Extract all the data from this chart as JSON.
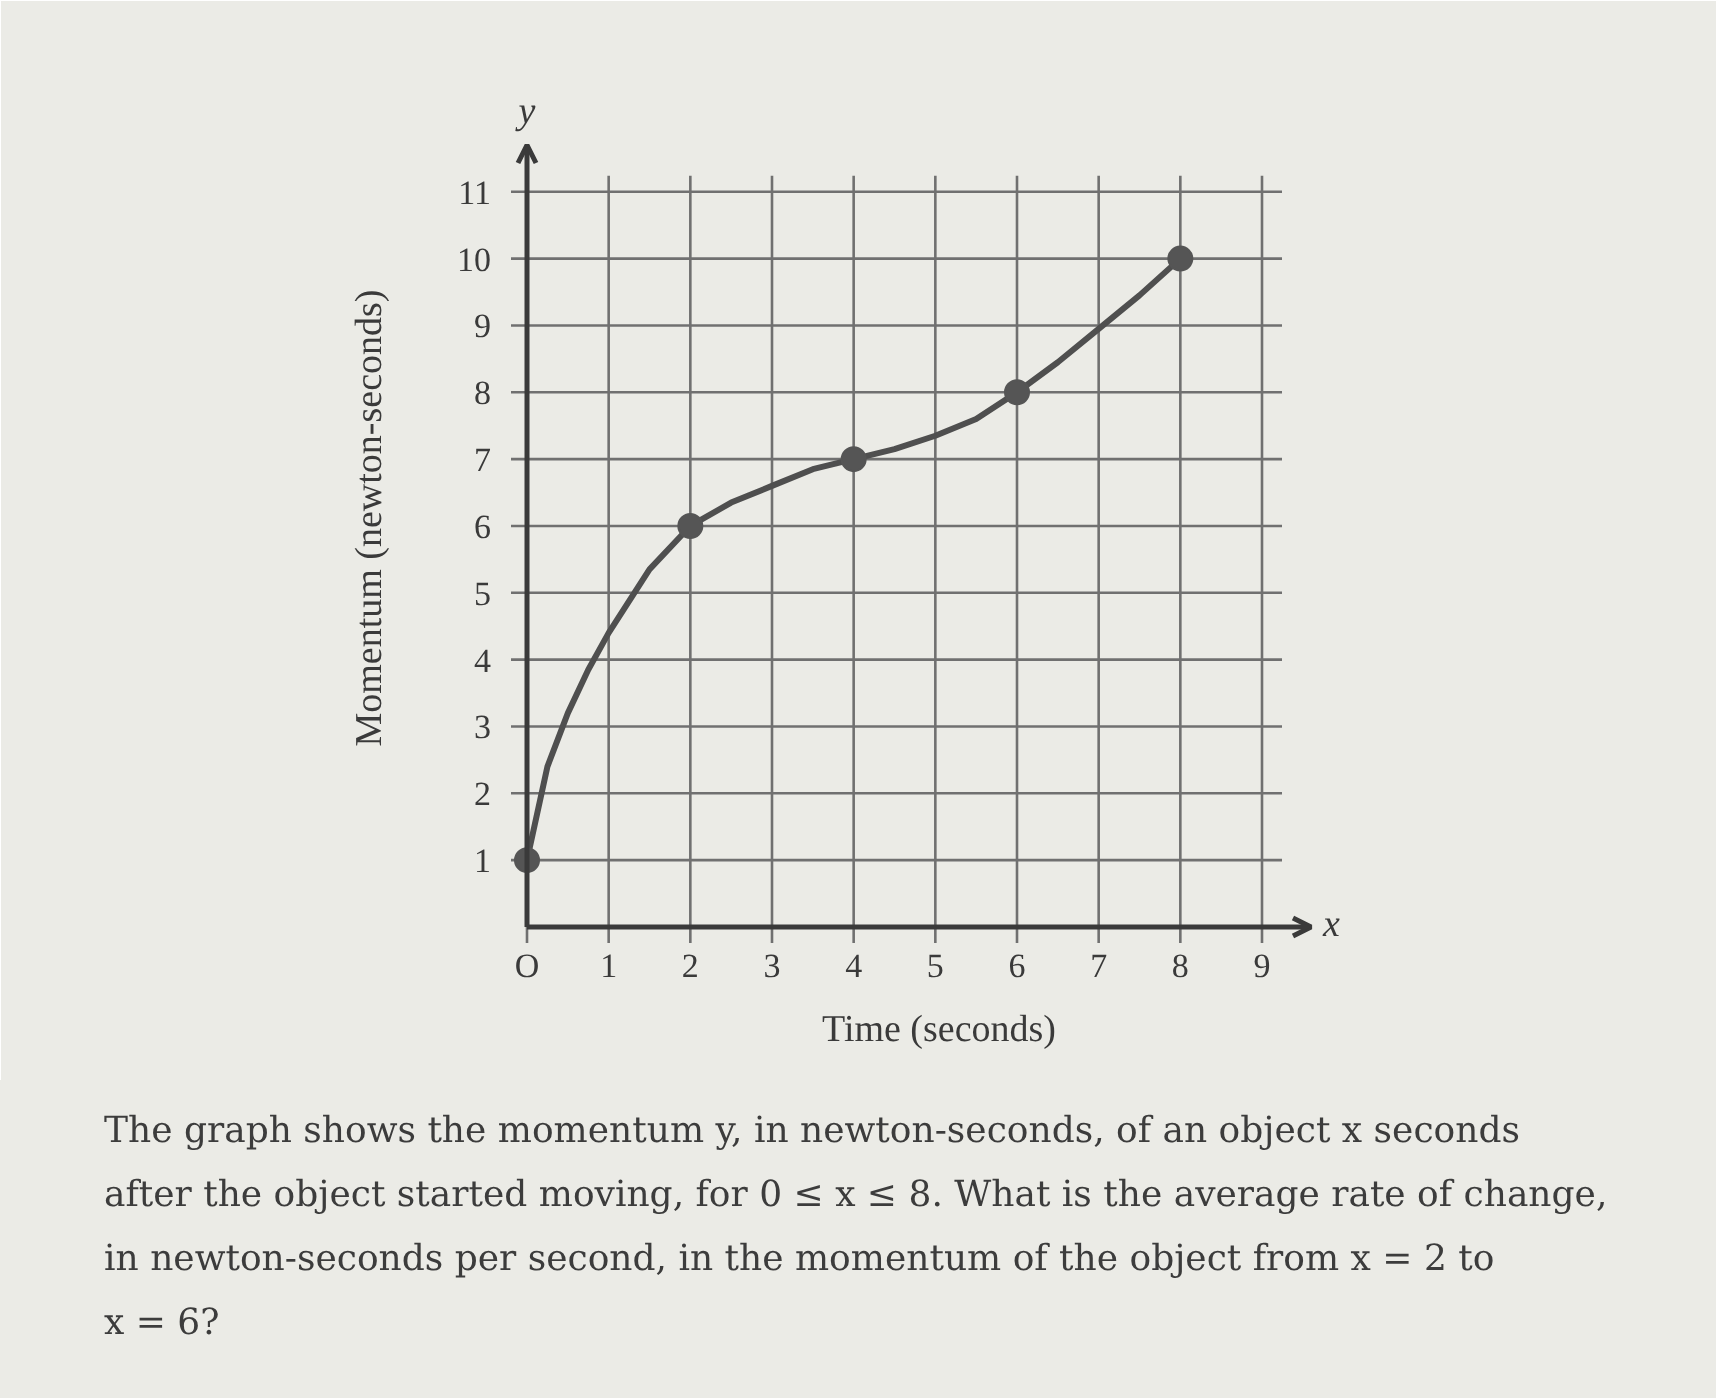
{
  "chart_data": {
    "type": "line",
    "xlabel": "Time (seconds)",
    "ylabel": "Momentum (newton-seconds)",
    "annotations": [
      "y",
      "x",
      "The graph shows the momentum y, in newton-seconds, of an object x seconds\nafter the object started moving, for 0 ≤ x ≤ 8. What is the average rate of change,\nin newton-seconds per second, in the momentum of the object from x = 2 to\nx = 6?"
    ],
    "xlim": [
      0,
      9.6
    ],
    "ylim": [
      0,
      11.7
    ],
    "xticks": [
      {
        "value": 0,
        "label": "O"
      },
      1,
      2,
      3,
      4,
      5,
      6,
      7,
      8,
      9
    ],
    "yticks": [
      1,
      2,
      3,
      4,
      5,
      6,
      7,
      8,
      9,
      10,
      11
    ],
    "grid": true,
    "series": [
      {
        "color": "#4f4f4f",
        "marker": "none",
        "line_style": "solid",
        "x": [
          0,
          0.25,
          0.5,
          0.75,
          1,
          1.5,
          2,
          2.5,
          3,
          3.5,
          4,
          4.5,
          5,
          5.5,
          6,
          6.5,
          7,
          7.5,
          8
        ],
        "values": [
          1,
          2.4,
          3.2,
          3.85,
          4.4,
          5.35,
          6,
          6.35,
          6.6,
          6.85,
          7,
          7.15,
          7.35,
          7.6,
          8,
          8.45,
          8.95,
          9.45,
          10
        ]
      },
      {
        "type": "scatter",
        "color": "#555555",
        "marker": "circle",
        "x": [
          0,
          2,
          4,
          6,
          8
        ],
        "values": [
          1,
          6,
          7,
          8,
          10
        ]
      }
    ]
  }
}
